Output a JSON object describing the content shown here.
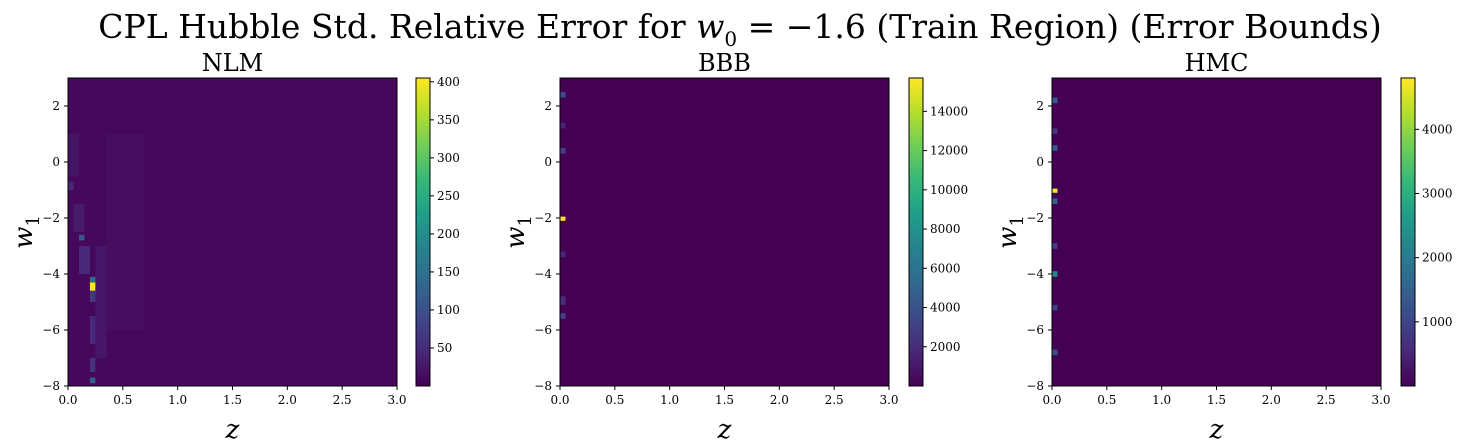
{
  "figure": {
    "title_parts": [
      "CPL Hubble Std. Relative Error for ",
      "w",
      "0",
      " = −1.6 (Train Region) (Error Bounds)"
    ]
  },
  "colormap": [
    "#440154",
    "#482878",
    "#3e4989",
    "#31688e",
    "#26828e",
    "#1f9e89",
    "#35b779",
    "#6ece58",
    "#b5de2b",
    "#fde725"
  ],
  "chart_data": [
    {
      "type": "heatmap",
      "title": "NLM",
      "xlabel": "z",
      "ylabel_main": "w",
      "ylabel_sub": "1",
      "xlim": [
        0.0,
        3.0
      ],
      "ylim": [
        -8,
        3
      ],
      "xticks": [
        "0.0",
        "0.5",
        "1.0",
        "1.5",
        "2.0",
        "2.5",
        "3.0"
      ],
      "yticks": [
        "−8",
        "−6",
        "−4",
        "−2",
        "0",
        "2"
      ],
      "colorbar": {
        "min": 0,
        "max": 405,
        "ticks": [
          "50",
          "100",
          "150",
          "200",
          "250",
          "300",
          "350",
          "400"
        ]
      },
      "background_value": 8,
      "hotspots": [
        {
          "x0": 0.2,
          "x1": 0.25,
          "y0": -4.6,
          "y1": -4.3,
          "value": 400
        },
        {
          "x0": 0.2,
          "x1": 0.25,
          "y0": -4.3,
          "y1": -4.1,
          "value": 140
        },
        {
          "x0": 0.15,
          "x1": 0.2,
          "y0": -3.7,
          "y1": -3.4,
          "value": 160
        },
        {
          "x0": 0.1,
          "x1": 0.15,
          "y0": -2.8,
          "y1": -2.6,
          "value": 110
        },
        {
          "x0": 0.2,
          "x1": 0.25,
          "y0": -7.9,
          "y1": -7.7,
          "value": 120
        },
        {
          "x0": 0.2,
          "x1": 0.25,
          "y0": -7.5,
          "y1": -7.0,
          "value": 60
        },
        {
          "x0": 0.2,
          "x1": 0.25,
          "y0": -6.5,
          "y1": -5.5,
          "value": 45
        },
        {
          "x0": 0.2,
          "x1": 0.3,
          "y0": -5.0,
          "y1": -4.6,
          "value": 70
        },
        {
          "x0": 0.1,
          "x1": 0.2,
          "y0": -4.0,
          "y1": -3.0,
          "value": 45
        },
        {
          "x0": 0.05,
          "x1": 0.15,
          "y0": -2.5,
          "y1": -1.5,
          "value": 30
        },
        {
          "x0": 0.0,
          "x1": 0.05,
          "y0": -1.0,
          "y1": -0.7,
          "value": 45
        },
        {
          "x0": 0.25,
          "x1": 0.35,
          "y0": -7.0,
          "y1": -3.0,
          "value": 25
        },
        {
          "x0": 0.0,
          "x1": 0.1,
          "y0": -0.5,
          "y1": 1.0,
          "value": 22
        },
        {
          "x0": 0.35,
          "x1": 0.7,
          "y0": -6.0,
          "y1": 1.0,
          "value": 15
        }
      ]
    },
    {
      "type": "heatmap",
      "title": "BBB",
      "xlabel": "z",
      "ylabel_main": "w",
      "ylabel_sub": "1",
      "xlim": [
        0.0,
        3.0
      ],
      "ylim": [
        -8,
        3
      ],
      "xticks": [
        "0.0",
        "0.5",
        "1.0",
        "1.5",
        "2.0",
        "2.5",
        "3.0"
      ],
      "yticks": [
        "−8",
        "−6",
        "−4",
        "−2",
        "0",
        "2"
      ],
      "colorbar": {
        "min": 0,
        "max": 15700,
        "ticks": [
          "2000",
          "4000",
          "6000",
          "8000",
          "10000",
          "12000",
          "14000"
        ]
      },
      "background_value": 0,
      "hotspots": [
        {
          "x0": 0.0,
          "x1": 0.05,
          "y0": -2.1,
          "y1": -1.95,
          "value": 15500
        },
        {
          "x0": 0.0,
          "x1": 0.05,
          "y0": 2.3,
          "y1": 2.5,
          "value": 3500
        },
        {
          "x0": 0.0,
          "x1": 0.05,
          "y0": 0.3,
          "y1": 0.5,
          "value": 3000
        },
        {
          "x0": 0.0,
          "x1": 0.05,
          "y0": -5.6,
          "y1": -5.4,
          "value": 3000
        },
        {
          "x0": 0.0,
          "x1": 0.05,
          "y0": -5.1,
          "y1": -4.8,
          "value": 2000
        },
        {
          "x0": 0.0,
          "x1": 0.05,
          "y0": -3.4,
          "y1": -3.2,
          "value": 1800
        },
        {
          "x0": 0.0,
          "x1": 0.05,
          "y0": 1.2,
          "y1": 1.4,
          "value": 1500
        }
      ]
    },
    {
      "type": "heatmap",
      "title": "HMC",
      "xlabel": "z",
      "ylabel_main": "w",
      "ylabel_sub": "1",
      "xlim": [
        0.0,
        3.0
      ],
      "ylim": [
        -8,
        3
      ],
      "xticks": [
        "0.0",
        "0.5",
        "1.0",
        "1.5",
        "2.0",
        "2.5",
        "3.0"
      ],
      "yticks": [
        "−8",
        "−6",
        "−4",
        "−2",
        "0",
        "2"
      ],
      "colorbar": {
        "min": 0,
        "max": 4800,
        "ticks": [
          "1000",
          "2000",
          "3000",
          "4000"
        ]
      },
      "background_value": 0,
      "hotspots": [
        {
          "x0": 0.0,
          "x1": 0.05,
          "y0": -1.1,
          "y1": -0.95,
          "value": 4700
        },
        {
          "x0": 0.0,
          "x1": 0.05,
          "y0": -4.1,
          "y1": -3.9,
          "value": 2200
        },
        {
          "x0": 0.0,
          "x1": 0.05,
          "y0": 2.1,
          "y1": 2.3,
          "value": 1400
        },
        {
          "x0": 0.0,
          "x1": 0.05,
          "y0": 0.4,
          "y1": 0.6,
          "value": 1400
        },
        {
          "x0": 0.0,
          "x1": 0.05,
          "y0": -1.5,
          "y1": -1.3,
          "value": 1500
        },
        {
          "x0": 0.0,
          "x1": 0.05,
          "y0": -6.9,
          "y1": -6.7,
          "value": 1200
        },
        {
          "x0": 0.0,
          "x1": 0.05,
          "y0": -5.3,
          "y1": -5.1,
          "value": 900
        },
        {
          "x0": 0.0,
          "x1": 0.05,
          "y0": -3.1,
          "y1": -2.9,
          "value": 900
        },
        {
          "x0": 0.0,
          "x1": 0.05,
          "y0": 1.0,
          "y1": 1.2,
          "value": 800
        }
      ]
    }
  ]
}
